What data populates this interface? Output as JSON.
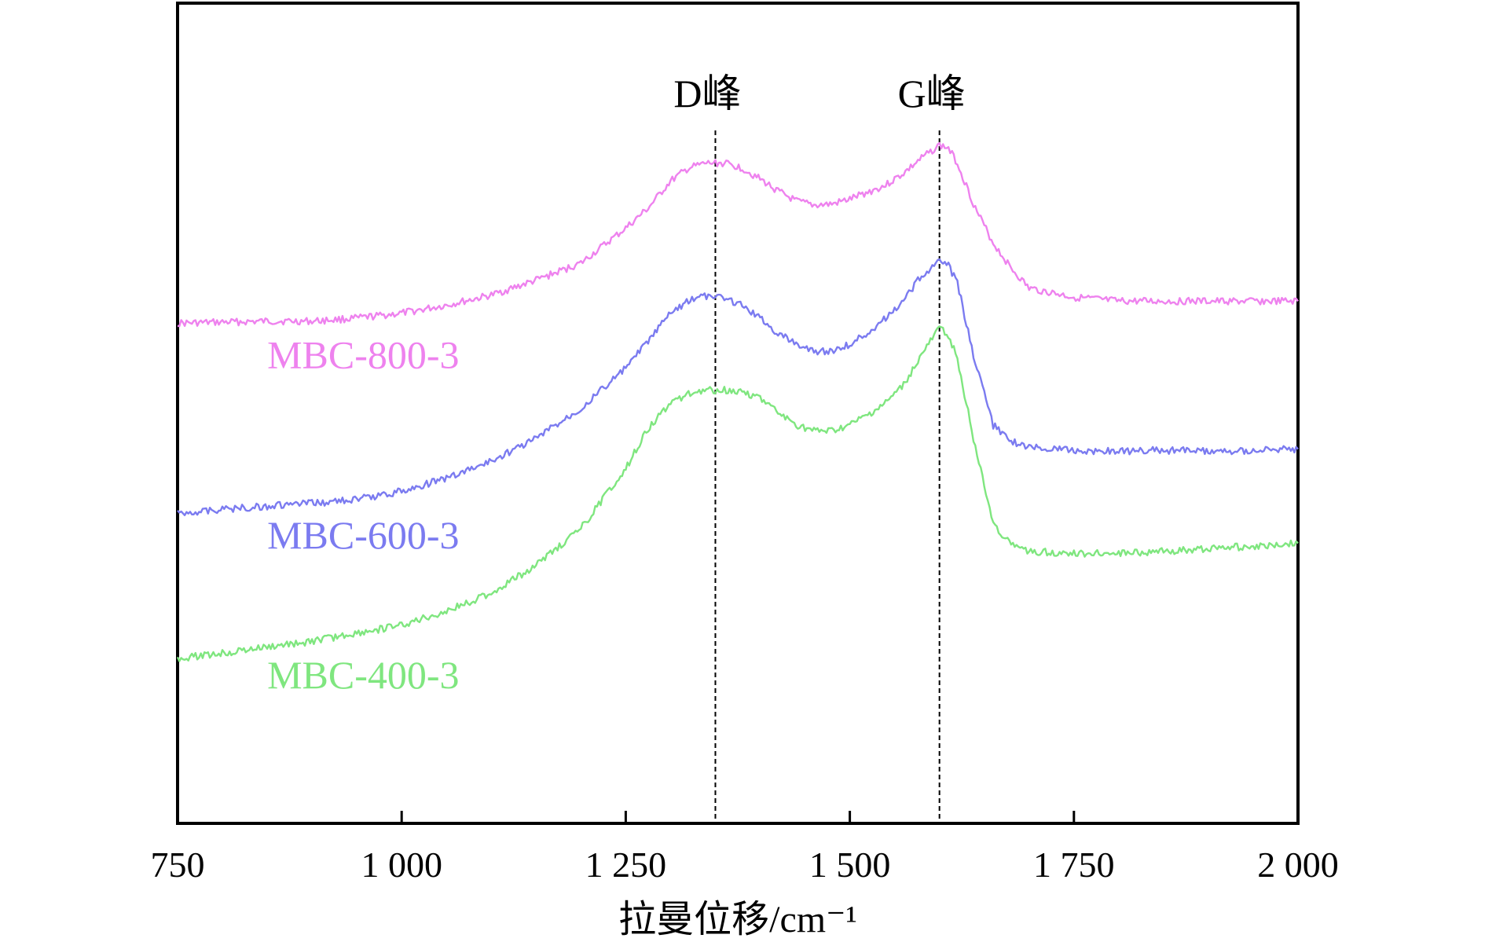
{
  "chart_data": {
    "type": "line",
    "title": "",
    "xlabel": "拉曼位移/cm⁻¹",
    "ylabel": "",
    "xlim": [
      750,
      2000
    ],
    "ylim": [
      0,
      8.2
    ],
    "grid": false,
    "legend": "inline labels",
    "x_ticks": [
      750,
      1000,
      1250,
      1500,
      1750,
      2000
    ],
    "x_tick_labels": [
      "750",
      "1 000",
      "1 250",
      "1 500",
      "1 750",
      "2 000"
    ],
    "annotations": [
      {
        "text": "D峰",
        "x": 1350
      },
      {
        "text": "G峰",
        "x": 1600
      }
    ],
    "series": [
      {
        "name": "MBC-800-3",
        "color": "#ee82ee",
        "label_x": 850,
        "label_y": 4.55,
        "x": [
          750,
          800,
          850,
          900,
          950,
          1000,
          1050,
          1100,
          1150,
          1200,
          1250,
          1275,
          1300,
          1320,
          1340,
          1360,
          1380,
          1400,
          1420,
          1440,
          1460,
          1480,
          1500,
          1520,
          1540,
          1560,
          1580,
          1600,
          1610,
          1620,
          1640,
          1660,
          1680,
          1700,
          1750,
          1800,
          1850,
          1900,
          1950,
          2000
        ],
        "values": [
          5.0,
          5.01,
          5.02,
          5.02,
          5.05,
          5.1,
          5.18,
          5.28,
          5.43,
          5.6,
          5.95,
          6.15,
          6.42,
          6.55,
          6.6,
          6.6,
          6.55,
          6.44,
          6.32,
          6.22,
          6.18,
          6.19,
          6.24,
          6.31,
          6.38,
          6.5,
          6.65,
          6.78,
          6.75,
          6.6,
          6.15,
          5.8,
          5.55,
          5.35,
          5.26,
          5.22,
          5.22,
          5.22,
          5.22,
          5.22
        ]
      },
      {
        "name": "MBC-600-3",
        "color": "#7b7bf0",
        "label_x": 850,
        "label_y": 2.75,
        "x": [
          750,
          800,
          850,
          900,
          950,
          1000,
          1050,
          1100,
          1150,
          1200,
          1250,
          1275,
          1300,
          1320,
          1340,
          1360,
          1380,
          1400,
          1420,
          1440,
          1460,
          1480,
          1500,
          1520,
          1540,
          1560,
          1580,
          1600,
          1610,
          1620,
          1640,
          1660,
          1680,
          1700,
          1750,
          1800,
          1850,
          1900,
          1950,
          2000
        ],
        "values": [
          3.1,
          3.14,
          3.17,
          3.2,
          3.24,
          3.32,
          3.45,
          3.62,
          3.85,
          4.15,
          4.55,
          4.82,
          5.1,
          5.23,
          5.27,
          5.25,
          5.18,
          5.05,
          4.9,
          4.8,
          4.72,
          4.72,
          4.79,
          4.9,
          5.05,
          5.22,
          5.48,
          5.62,
          5.58,
          5.4,
          4.6,
          3.98,
          3.82,
          3.76,
          3.73,
          3.72,
          3.73,
          3.72,
          3.73,
          3.74
        ]
      },
      {
        "name": "MBC-400-3",
        "color": "#7fe67f",
        "label_x": 850,
        "label_y": 1.35,
        "x": [
          750,
          800,
          850,
          900,
          950,
          1000,
          1050,
          1100,
          1150,
          1200,
          1250,
          1275,
          1300,
          1320,
          1340,
          1360,
          1380,
          1400,
          1420,
          1440,
          1460,
          1480,
          1500,
          1520,
          1540,
          1560,
          1580,
          1600,
          1610,
          1620,
          1640,
          1660,
          1680,
          1700,
          1750,
          1800,
          1850,
          1900,
          1950,
          2000
        ],
        "values": [
          1.65,
          1.7,
          1.76,
          1.82,
          1.9,
          1.98,
          2.12,
          2.3,
          2.58,
          2.95,
          3.55,
          3.95,
          4.2,
          4.3,
          4.33,
          4.33,
          4.32,
          4.25,
          4.1,
          3.98,
          3.92,
          3.92,
          3.98,
          4.08,
          4.2,
          4.38,
          4.68,
          4.95,
          4.88,
          4.65,
          3.75,
          3.0,
          2.78,
          2.72,
          2.7,
          2.7,
          2.72,
          2.75,
          2.77,
          2.8
        ]
      }
    ]
  }
}
